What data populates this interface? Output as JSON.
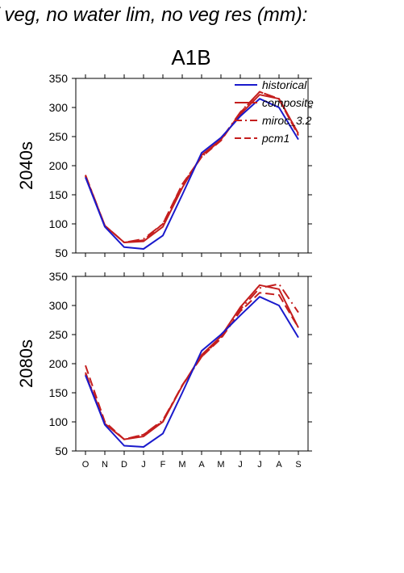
{
  "figure": {
    "suptitle": "f veg, no water lim, no veg res (mm):",
    "scenario_title": "A1B"
  },
  "colors": {
    "historical": "#1a1acc",
    "composite": "#c41e1e",
    "miroc_3.2": "#c41e1e",
    "pcm1": "#c41e1e",
    "axes": "#000000"
  },
  "chart_data": [
    {
      "type": "line",
      "row_label": "2040s",
      "title": "A1B",
      "x": [
        "O",
        "N",
        "D",
        "J",
        "F",
        "M",
        "A",
        "M",
        "J",
        "J",
        "A",
        "S"
      ],
      "ylim": [
        50,
        350
      ],
      "yticks": [
        50,
        100,
        150,
        200,
        250,
        300,
        350
      ],
      "grid": false,
      "legend_position": "top-right",
      "series": [
        {
          "name": "historical",
          "style": "solid",
          "values": [
            180,
            95,
            60,
            57,
            80,
            150,
            222,
            248,
            285,
            315,
            300,
            245
          ]
        },
        {
          "name": "composite",
          "style": "solid",
          "values": [
            182,
            97,
            68,
            70,
            95,
            162,
            218,
            245,
            288,
            322,
            315,
            255
          ]
        },
        {
          "name": "miroc_3.2",
          "style": "dash-dot",
          "values": [
            184,
            97,
            68,
            74,
            100,
            167,
            215,
            245,
            292,
            327,
            315,
            255
          ]
        },
        {
          "name": "pcm1",
          "style": "long-dash",
          "values": [
            183,
            97,
            68,
            72,
            100,
            168,
            215,
            243,
            291,
            327,
            314,
            252
          ]
        }
      ]
    },
    {
      "type": "line",
      "row_label": "2080s",
      "x": [
        "O",
        "N",
        "D",
        "J",
        "F",
        "M",
        "A",
        "M",
        "J",
        "J",
        "A",
        "S"
      ],
      "ylim": [
        50,
        350
      ],
      "yticks": [
        50,
        100,
        150,
        200,
        250,
        300,
        350
      ],
      "grid": false,
      "series": [
        {
          "name": "historical",
          "style": "solid",
          "values": [
            180,
            95,
            59,
            57,
            80,
            150,
            222,
            250,
            283,
            315,
            300,
            245
          ]
        },
        {
          "name": "composite",
          "style": "solid",
          "values": [
            182,
            97,
            70,
            75,
            100,
            162,
            215,
            247,
            297,
            335,
            328,
            262
          ]
        },
        {
          "name": "miroc_3.2",
          "style": "dash-dot",
          "values": [
            185,
            97,
            70,
            78,
            103,
            162,
            212,
            245,
            293,
            330,
            337,
            288
          ]
        },
        {
          "name": "pcm1",
          "style": "long-dash",
          "values": [
            197,
            100,
            70,
            78,
            101,
            163,
            212,
            243,
            290,
            322,
            318,
            262
          ]
        }
      ]
    }
  ]
}
